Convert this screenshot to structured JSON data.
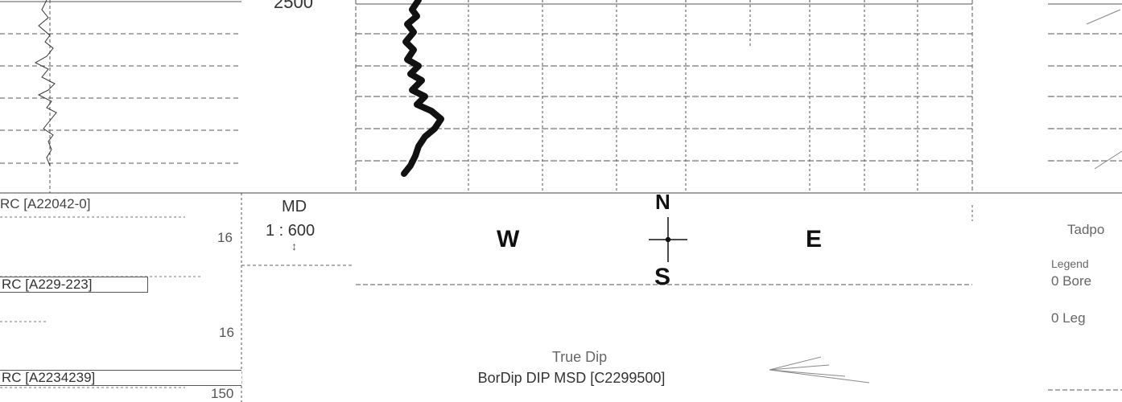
{
  "left_track": {
    "header_1": "RC [A22042-0]",
    "scale_1": "16",
    "header_2": "RC [A229-223]",
    "scale_2": "16",
    "header_3": "RC [A2234239]",
    "scale_3": "150"
  },
  "depth_track": {
    "top_depth": "2500",
    "header": "MD",
    "scale_value": "1 : 600",
    "marker": "↕"
  },
  "dip_track": {
    "compass_north": "N",
    "compass_south": "S",
    "compass_west": "W",
    "compass_east": "E",
    "footer_line_1": "True Dip",
    "footer_line_2": "BorDip DIP MSD [C2299500]",
    "arrow_icon": "arrow-left-icon"
  },
  "right_track": {
    "header": "Tadpo",
    "legend_title": "Legend",
    "legend_item_1": "0  Bore",
    "legend_item_2": "0  Leg"
  },
  "colors": {
    "ink": "#222222",
    "grid": "#555555",
    "dip_curve": "#111111"
  }
}
